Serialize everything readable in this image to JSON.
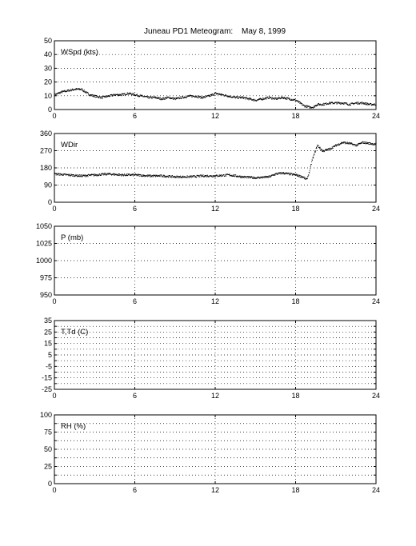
{
  "title_left": "Juneau PD1 Meteogram:",
  "title_right": "May  8, 1999",
  "chart_data": [
    {
      "type": "scatter",
      "label": "WSpd (kts)",
      "xlim": [
        0,
        24
      ],
      "ylim": [
        0,
        50
      ],
      "xticks": [
        0,
        6,
        12,
        18,
        24
      ],
      "yticks": [
        0,
        10,
        20,
        30,
        40,
        50
      ],
      "grid": true,
      "points": [
        [
          0.0,
          11
        ],
        [
          0.5,
          13
        ],
        [
          1.0,
          14
        ],
        [
          1.5,
          15
        ],
        [
          2.0,
          15
        ],
        [
          2.3,
          13
        ],
        [
          2.6,
          11
        ],
        [
          3.0,
          10
        ],
        [
          3.5,
          9
        ],
        [
          4.0,
          10
        ],
        [
          4.5,
          11
        ],
        [
          5.0,
          11
        ],
        [
          5.5,
          12
        ],
        [
          6.0,
          11
        ],
        [
          6.5,
          10
        ],
        [
          7.0,
          9
        ],
        [
          7.5,
          9
        ],
        [
          8.0,
          8
        ],
        [
          8.5,
          9
        ],
        [
          9.0,
          8
        ],
        [
          9.5,
          9
        ],
        [
          10.0,
          10
        ],
        [
          10.5,
          10
        ],
        [
          11.0,
          9
        ],
        [
          11.5,
          10
        ],
        [
          12.0,
          12
        ],
        [
          12.5,
          11
        ],
        [
          13.0,
          10
        ],
        [
          13.5,
          9
        ],
        [
          14.0,
          9
        ],
        [
          14.5,
          8
        ],
        [
          15.0,
          7
        ],
        [
          15.5,
          8
        ],
        [
          16.0,
          9
        ],
        [
          16.5,
          8
        ],
        [
          17.0,
          9
        ],
        [
          17.5,
          8
        ],
        [
          18.0,
          7
        ],
        [
          18.3,
          5
        ],
        [
          18.6,
          3
        ],
        [
          19.0,
          2
        ],
        [
          19.3,
          2
        ],
        [
          19.6,
          4
        ],
        [
          20.0,
          4
        ],
        [
          20.5,
          5
        ],
        [
          21.0,
          5
        ],
        [
          21.5,
          5
        ],
        [
          22.0,
          4
        ],
        [
          22.5,
          5
        ],
        [
          23.0,
          5
        ],
        [
          23.5,
          4
        ],
        [
          24.0,
          4
        ]
      ]
    },
    {
      "type": "scatter",
      "label": "WDir",
      "xlim": [
        0,
        24
      ],
      "ylim": [
        0,
        360
      ],
      "xticks": [
        0,
        6,
        12,
        18,
        24
      ],
      "yticks": [
        0,
        90,
        180,
        270,
        360
      ],
      "grid": true,
      "points": [
        [
          0.0,
          150
        ],
        [
          1.0,
          145
        ],
        [
          2.0,
          140
        ],
        [
          3.0,
          145
        ],
        [
          4.0,
          150
        ],
        [
          5.0,
          145
        ],
        [
          6.0,
          145
        ],
        [
          7.0,
          140
        ],
        [
          8.0,
          140
        ],
        [
          9.0,
          135
        ],
        [
          10.0,
          135
        ],
        [
          11.0,
          140
        ],
        [
          12.0,
          140
        ],
        [
          13.0,
          145
        ],
        [
          14.0,
          135
        ],
        [
          15.0,
          130
        ],
        [
          16.0,
          135
        ],
        [
          16.5,
          150
        ],
        [
          17.0,
          155
        ],
        [
          17.5,
          150
        ],
        [
          18.0,
          145
        ],
        [
          18.5,
          135
        ],
        [
          18.8,
          120
        ],
        [
          19.0,
          160
        ],
        [
          19.2,
          220
        ],
        [
          19.4,
          260
        ],
        [
          19.6,
          300
        ],
        [
          20.0,
          270
        ],
        [
          20.5,
          280
        ],
        [
          21.0,
          300
        ],
        [
          21.5,
          315
        ],
        [
          22.0,
          310
        ],
        [
          22.5,
          300
        ],
        [
          23.0,
          315
        ],
        [
          23.5,
          310
        ],
        [
          24.0,
          305
        ]
      ]
    },
    {
      "type": "scatter",
      "label": "P (mb)",
      "xlim": [
        0,
        24
      ],
      "ylim": [
        950,
        1050
      ],
      "xticks": [
        0,
        6,
        12,
        18,
        24
      ],
      "yticks": [
        950,
        975,
        1000,
        1025,
        1050
      ],
      "grid": true,
      "points": []
    },
    {
      "type": "scatter",
      "label": "T,Td (C)",
      "xlim": [
        0,
        24
      ],
      "ylim": [
        -25,
        35
      ],
      "xticks": [
        0,
        6,
        12,
        18,
        24
      ],
      "yticks": [
        -25,
        -15,
        -5,
        5,
        15,
        25,
        35
      ],
      "minor_yticks": [
        -20,
        -10,
        0,
        10,
        20,
        30
      ],
      "grid": true,
      "points": []
    },
    {
      "type": "scatter",
      "label": "RH (%)",
      "xlim": [
        0,
        24
      ],
      "ylim": [
        0,
        100
      ],
      "xticks": [
        0,
        6,
        12,
        18,
        24
      ],
      "yticks": [
        0,
        25,
        50,
        75,
        100
      ],
      "minor_yticks": [
        12.5,
        37.5,
        62.5,
        87.5
      ],
      "grid": true,
      "points": []
    }
  ]
}
